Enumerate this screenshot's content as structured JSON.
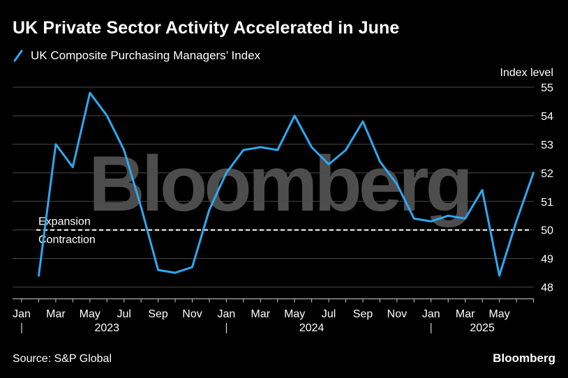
{
  "header": {
    "title": "UK Private Sector Activity Accelerated in June"
  },
  "footer": {
    "source": "Source: S&P Global",
    "brand": "Bloomberg"
  },
  "watermark": "Bloomberg",
  "colors": {
    "background": "#000000",
    "line": "#2ea8f0",
    "grid": "#4a4a4a",
    "text": "#ffffff",
    "watermark": "#5a5a5a"
  },
  "chart_data": {
    "type": "line",
    "title": "UK Private Sector Activity Accelerated in June",
    "ylabel": "Index level",
    "xlabel": "",
    "ylim": [
      47.6,
      55
    ],
    "yticks": [
      48,
      49,
      50,
      51,
      52,
      53,
      54,
      55
    ],
    "axis_side": "right",
    "grid": true,
    "legend": "top-left",
    "x_tick_labels": [
      "Jan",
      "Mar",
      "May",
      "Jul",
      "Sep",
      "Nov",
      "Jan",
      "Mar",
      "May",
      "Jul",
      "Sep",
      "Nov",
      "Jan",
      "Mar",
      "May"
    ],
    "x_tick_months": [
      "2023-01",
      "2023-03",
      "2023-05",
      "2023-07",
      "2023-09",
      "2023-11",
      "2024-01",
      "2024-03",
      "2024-05",
      "2024-07",
      "2024-09",
      "2024-11",
      "2025-01",
      "2025-03",
      "2025-05"
    ],
    "year_labels": [
      {
        "label": "2023",
        "month": "2023-06"
      },
      {
        "label": "2024",
        "month": "2024-06"
      },
      {
        "label": "2025",
        "month": "2025-04"
      }
    ],
    "year_separators": [
      "2023-01",
      "2024-01",
      "2025-01"
    ],
    "reference_line": {
      "value": 50,
      "label_above": "Expansion",
      "label_below": "Contraction"
    },
    "series": [
      {
        "name": "UK Composite Purchasing Managers’ Index",
        "x": [
          "2023-02",
          "2023-03",
          "2023-04",
          "2023-05",
          "2023-06",
          "2023-07",
          "2023-08",
          "2023-09",
          "2023-10",
          "2023-11",
          "2023-12",
          "2024-01",
          "2024-02",
          "2024-03",
          "2024-04",
          "2024-05",
          "2024-06",
          "2024-07",
          "2024-08",
          "2024-09",
          "2024-10",
          "2024-11",
          "2024-12",
          "2025-01",
          "2025-02",
          "2025-03",
          "2025-04",
          "2025-05",
          "2025-06",
          "2025-07"
        ],
        "values": [
          48.4,
          53.0,
          52.2,
          54.8,
          54.0,
          52.8,
          50.8,
          48.6,
          48.5,
          48.7,
          50.7,
          52.0,
          52.8,
          52.9,
          52.8,
          54.0,
          52.9,
          52.3,
          52.8,
          53.8,
          52.4,
          51.6,
          50.4,
          50.3,
          50.5,
          50.4,
          51.4,
          48.4,
          50.3,
          52.0
        ]
      }
    ]
  }
}
